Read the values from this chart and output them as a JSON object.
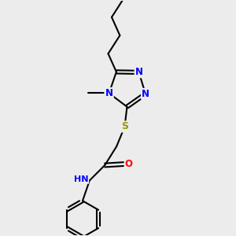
{
  "bg_color": "#ececec",
  "atom_colors": {
    "C": "#000000",
    "N": "#0000ff",
    "O": "#ff0000",
    "S": "#999900",
    "H": "#000000"
  },
  "bond_color": "#000000",
  "bond_width": 1.5,
  "font_size_atom": 8.5
}
